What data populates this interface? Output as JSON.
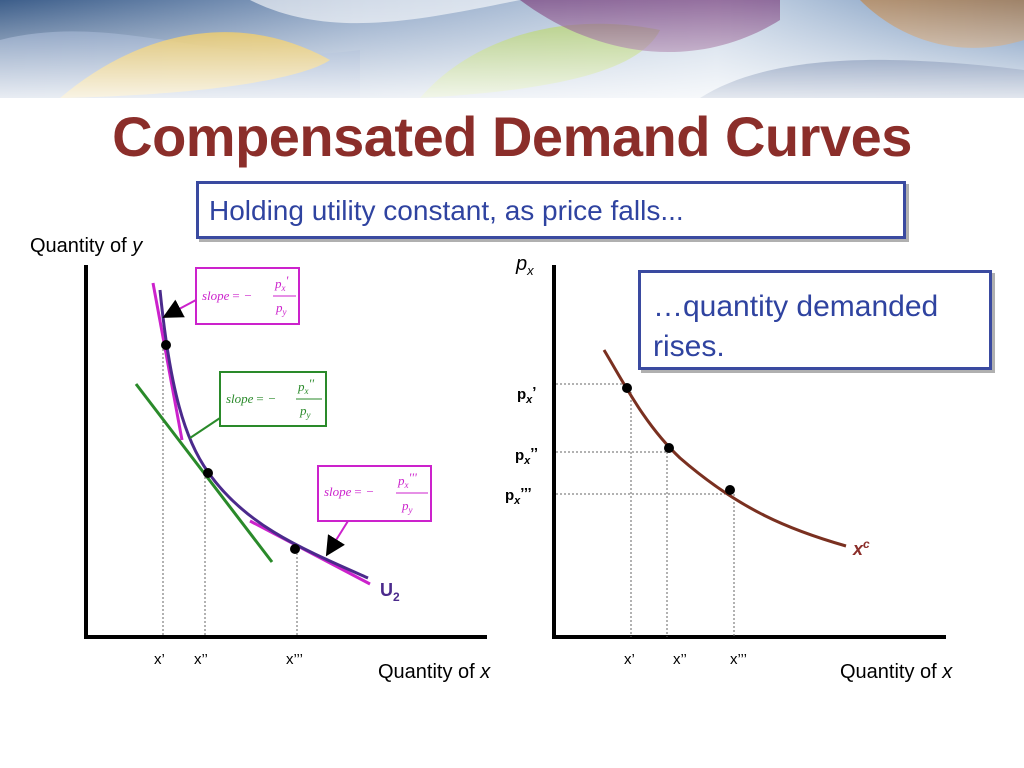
{
  "title": "Compensated Demand Curves",
  "callouts": {
    "holding": "Holding utility constant, as price falls...",
    "rises_line1": "…quantity demanded",
    "rises_line2": "rises."
  },
  "left_graph": {
    "y_axis_label": "Quantity of ",
    "y_axis_var": "y",
    "x_axis_label": "Quantity of ",
    "x_axis_var": "x",
    "x_ticks": [
      "x’",
      "x’’",
      "x’’’"
    ],
    "curve_label": "U",
    "curve_label_sub": "2",
    "slope_boxes": [
      {
        "word": "slope",
        "eq": "= −",
        "num": "p",
        "num_sub": "x",
        "primes": "'",
        "den": "p",
        "den_sub": "y"
      },
      {
        "word": "slope",
        "eq": "= −",
        "num": "p",
        "num_sub": "x",
        "primes": "''",
        "den": "p",
        "den_sub": "y"
      },
      {
        "word": "slope",
        "eq": "= −",
        "num": "p",
        "num_sub": "x",
        "primes": "'''",
        "den": "p",
        "den_sub": "y"
      }
    ]
  },
  "right_graph": {
    "y_axis_label": "p",
    "y_axis_sub": "x",
    "x_axis_label": "Quantity of ",
    "x_axis_var": "x",
    "price_ticks": [
      {
        "p": "p",
        "sub": "x",
        "primes": "’"
      },
      {
        "p": "p",
        "sub": "x",
        "primes": "’’"
      },
      {
        "p": "p",
        "sub": "x",
        "primes": "’’’"
      }
    ],
    "x_ticks": [
      "x’",
      "x’’",
      "x’’’"
    ],
    "curve_label": "x",
    "curve_label_sup": "c"
  },
  "colors": {
    "title": "#8b2e2a",
    "callout_border": "#3a4aa0",
    "callout_text": "#2f43a0",
    "indifference_curve": "#4b2a8c",
    "tangent_magenta": "#cc22cc",
    "tangent_green": "#2a8a2a",
    "demand_curve": "#7a3020"
  }
}
